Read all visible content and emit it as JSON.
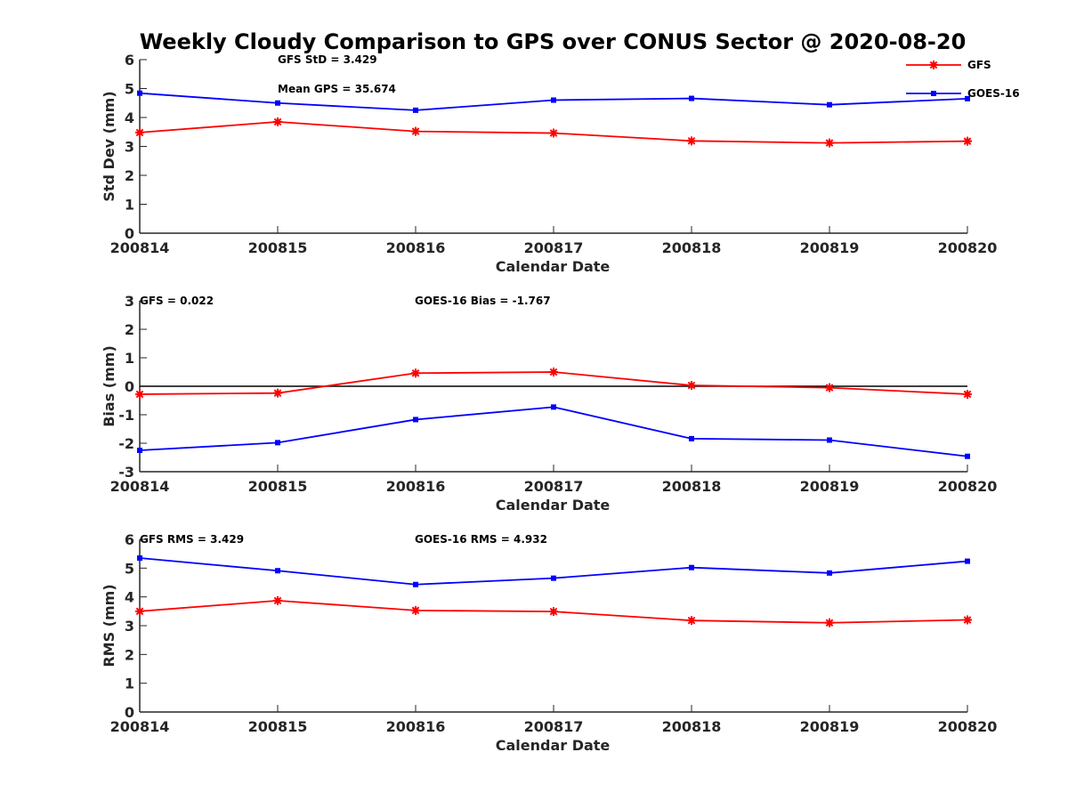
{
  "chart_data": [
    {
      "type": "line",
      "title": "Weekly Cloudy Comparison to GPS over CONUS Sector @ 2020-08-20",
      "xlabel": "Calendar Date",
      "ylabel": "Std Dev (mm)",
      "categories": [
        "200814",
        "200815",
        "200816",
        "200817",
        "200818",
        "200819",
        "200820"
      ],
      "ylim": [
        0,
        6
      ],
      "yticks": [
        "0",
        "1",
        "2",
        "3",
        "4",
        "5",
        "6"
      ],
      "zero_line": false,
      "series": [
        {
          "name": "GFS",
          "color": "#ff0000",
          "marker": "asterisk",
          "values": [
            3.48,
            3.85,
            3.52,
            3.46,
            3.19,
            3.12,
            3.18
          ]
        },
        {
          "name": "GOES-16",
          "color": "#0000ff",
          "marker": "square",
          "values": [
            4.84,
            4.5,
            4.25,
            4.6,
            4.66,
            4.44,
            4.65
          ]
        }
      ],
      "annotations": [
        "GFS StD = 3.429",
        "Mean GPS = 35.674"
      ],
      "legend": {
        "location": "top-right",
        "entries": [
          "GFS",
          "GOES-16"
        ]
      }
    },
    {
      "type": "line",
      "xlabel": "Calendar Date",
      "ylabel": "Bias (mm)",
      "categories": [
        "200814",
        "200815",
        "200816",
        "200817",
        "200818",
        "200819",
        "200820"
      ],
      "ylim": [
        -3,
        3
      ],
      "yticks": [
        "-3",
        "-2",
        "-1",
        "0",
        "1",
        "2",
        "3"
      ],
      "zero_line": true,
      "series": [
        {
          "name": "GFS",
          "color": "#ff0000",
          "marker": "asterisk",
          "values": [
            -0.28,
            -0.24,
            0.46,
            0.5,
            0.03,
            -0.05,
            -0.28
          ]
        },
        {
          "name": "GOES-16",
          "color": "#0000ff",
          "marker": "square",
          "values": [
            -2.25,
            -1.98,
            -1.17,
            -0.73,
            -1.84,
            -1.89,
            -2.46
          ]
        }
      ],
      "annotations": [
        "GFS = 0.022",
        "GOES-16 Bias  = -1.767"
      ]
    },
    {
      "type": "line",
      "xlabel": "Calendar Date",
      "ylabel": "RMS (mm)",
      "categories": [
        "200814",
        "200815",
        "200816",
        "200817",
        "200818",
        "200819",
        "200820"
      ],
      "ylim": [
        0,
        6
      ],
      "yticks": [
        "0",
        "1",
        "2",
        "3",
        "4",
        "5",
        "6"
      ],
      "zero_line": false,
      "series": [
        {
          "name": "GFS",
          "color": "#ff0000",
          "marker": "asterisk",
          "values": [
            3.5,
            3.87,
            3.53,
            3.49,
            3.18,
            3.1,
            3.2
          ]
        },
        {
          "name": "GOES-16",
          "color": "#0000ff",
          "marker": "square",
          "values": [
            5.35,
            4.91,
            4.43,
            4.65,
            5.02,
            4.83,
            5.24
          ]
        }
      ],
      "annotations": [
        "GFS RMS = 3.429",
        "GOES-16 RMS = 4.932"
      ]
    }
  ]
}
